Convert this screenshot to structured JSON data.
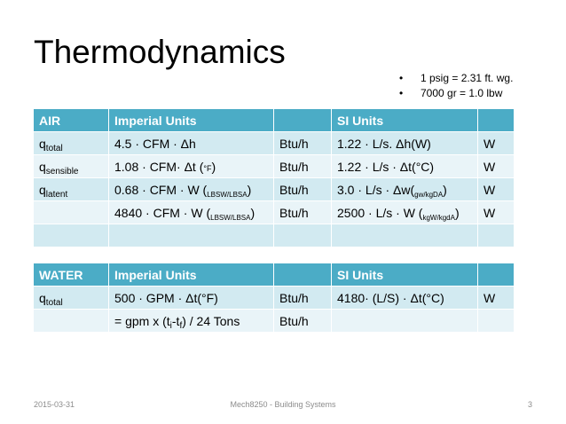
{
  "title": "Thermodynamics",
  "notes": [
    "1 psig = 2.31 ft. wg.",
    "7000 gr = 1.0 lbw"
  ],
  "air_table": {
    "headers": [
      "AIR",
      "Imperial Units",
      "",
      "SI Units",
      ""
    ],
    "rows": [
      {
        "q": "q",
        "q_sub": "total",
        "imp_a": "4.5 · CFM · Δh",
        "imp_b": "",
        "imp_c": "",
        "imp_unit": "Btu/h",
        "si_a": "1.22 · L/s. Δh(W)",
        "si_b": "",
        "si_c": "",
        "si_unit": "W"
      },
      {
        "q": "q",
        "q_sub": "sensible",
        "imp_a": "1.08 · CFM· Δt (",
        "imp_b": "°F",
        "imp_c": ")",
        "imp_unit": "Btu/h",
        "si_a": "1.22 · L/s · Δt(°C)",
        "si_b": "",
        "si_c": "",
        "si_unit": "W"
      },
      {
        "q": "q",
        "q_sub": "latent",
        "imp_a": "0.68 · CFM · W (",
        "imp_b": "LBSW/LBSA",
        "imp_c": ")",
        "imp_unit": "Btu/h",
        "si_a": "3.0 · L/s · Δw(",
        "si_b": "gw/kgDA",
        "si_c": ")",
        "si_unit": "W"
      },
      {
        "q": "",
        "q_sub": "",
        "imp_a": "4840 · CFM · W (",
        "imp_b": "LBSW/LBSA",
        "imp_c": ")",
        "imp_unit": "Btu/h",
        "si_a": "2500 · L/s · W (",
        "si_b": "kgW/kgdA",
        "si_c": ")",
        "si_unit": "W"
      },
      {
        "q": "",
        "q_sub": "",
        "imp_a": "",
        "imp_b": "",
        "imp_c": "",
        "imp_unit": "",
        "si_a": "",
        "si_b": "",
        "si_c": "",
        "si_unit": ""
      }
    ]
  },
  "water_table": {
    "headers": [
      "WATER",
      "Imperial Units",
      "",
      "SI Units",
      ""
    ],
    "row1": {
      "q": "q",
      "q_sub": "total",
      "imp": "500 · GPM · Δt(°F)",
      "imp_unit": "Btu/h",
      "si": "4180· (L/S) · Δt(°C)",
      "si_unit": "W"
    },
    "row2": {
      "imp_a": "= gpm x (t",
      "sub_i": "i",
      "imp_b": "-t",
      "sub_f": "f",
      "imp_c": ") / 24 Tons",
      "imp_unit": "Btu/h"
    }
  },
  "footer": {
    "date": "2015-03-31",
    "center": "Mech8250 - Building Systems",
    "page": "3"
  }
}
